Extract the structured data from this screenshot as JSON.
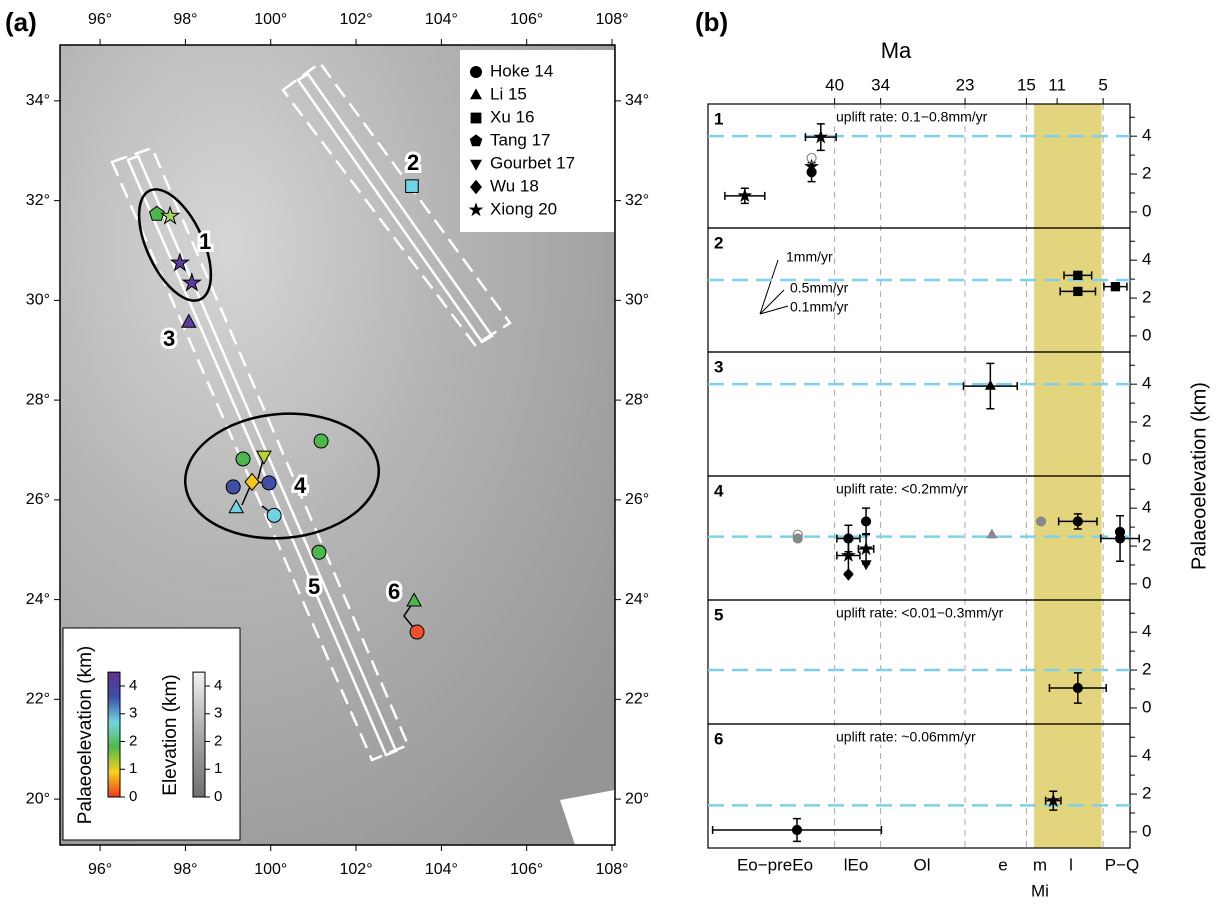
{
  "chart_data": [
    {
      "type": "map",
      "panel_label": "(a)",
      "xlim": [
        95.06,
        108.07
      ],
      "ylim": [
        19.08,
        35.12
      ],
      "xticks": [
        {
          "value": 96,
          "label": "96°"
        },
        {
          "value": 98,
          "label": "98°"
        },
        {
          "value": 100,
          "label": "100°"
        },
        {
          "value": 102,
          "label": "102°"
        },
        {
          "value": 104,
          "label": "104°"
        },
        {
          "value": 106,
          "label": "106°"
        },
        {
          "value": 108,
          "label": "108°"
        }
      ],
      "yticks": [
        {
          "value": 20,
          "label": "20°"
        },
        {
          "value": 22,
          "label": "22°"
        },
        {
          "value": 24,
          "label": "24°"
        },
        {
          "value": 26,
          "label": "26°"
        },
        {
          "value": 28,
          "label": "28°"
        },
        {
          "value": 30,
          "label": "30°"
        },
        {
          "value": 32,
          "label": "32°"
        },
        {
          "value": 34,
          "label": "34°"
        }
      ],
      "series": [
        {
          "name": "Hoke 14",
          "marker": "circle",
          "x": [
            99.35,
            99.12,
            99.96,
            100.08,
            101.18,
            101.13,
            103.43
          ],
          "y": [
            26.82,
            26.26,
            26.34,
            25.69,
            27.18,
            24.95,
            23.35
          ],
          "colors": [
            "#4cb84c",
            "#3f4fa8",
            "#3f4fa8",
            "#6fd3e3",
            "#4cb84c",
            "#4cb84c",
            "#f0502a"
          ]
        },
        {
          "name": "Li 15",
          "marker": "triangle",
          "x": [
            98.08,
            99.19,
            103.36
          ],
          "y": [
            29.56,
            25.84,
            23.97
          ],
          "colors": [
            "#5d3c9c",
            "#6fd3e3",
            "#4cb84c"
          ]
        },
        {
          "name": "Xu 16",
          "marker": "square",
          "x": [
            103.31
          ],
          "y": [
            32.29
          ],
          "colors": [
            "#6fd3e3"
          ]
        },
        {
          "name": "Tang 17",
          "marker": "pentagon",
          "x": [
            97.33
          ],
          "y": [
            31.73
          ],
          "colors": [
            "#4cb84c"
          ]
        },
        {
          "name": "Gourbet 17",
          "marker": "triangle-down",
          "x": [
            99.84
          ],
          "y": [
            26.88
          ],
          "colors": [
            "#b6d332"
          ]
        },
        {
          "name": "Wu 18",
          "marker": "diamond",
          "x": [
            99.56
          ],
          "y": [
            26.36
          ],
          "colors": [
            "#f5c518"
          ]
        },
        {
          "name": "Xiong 20",
          "marker": "star",
          "x": [
            97.64,
            97.87,
            98.15
          ],
          "y": [
            31.69,
            30.75,
            30.35
          ],
          "colors": [
            "#a3d462",
            "#5d3c9c",
            "#5d3c9c"
          ]
        }
      ],
      "annotations": [
        "1",
        "2",
        "3",
        "4",
        "5",
        "6"
      ],
      "colorbars": [
        {
          "label": "Palaeoelevation (km)",
          "lim": [
            0,
            4.5
          ],
          "ticks": [
            0,
            1,
            2,
            3,
            4
          ],
          "colors": [
            "#ee3a1f",
            "#f7d21c",
            "#52b84c",
            "#72d5e2",
            "#3d4fa8",
            "#62328f"
          ]
        },
        {
          "label": "Elevation (km)",
          "lim": [
            0,
            4.5
          ],
          "ticks": [
            0,
            1,
            2,
            3,
            4
          ],
          "colors": [
            "#707070",
            "#a8a8a8",
            "#f2f2f2"
          ]
        }
      ]
    },
    {
      "type": "timeline-panels",
      "panel_label": "(b)",
      "xlabel": "Ma",
      "ylabel": "Palaeoelevation (km)",
      "xlim": [
        56.5,
        1.5
      ],
      "xticks": [
        40,
        34,
        23,
        15,
        11,
        5
      ],
      "band": [
        14,
        5.2
      ],
      "band_color": "#e3d47e",
      "reference_color": "#7fd0ea",
      "ylim": [
        -0.85,
        5.7
      ],
      "yticks": [
        0,
        2,
        4
      ],
      "yminor": [
        1,
        3,
        5
      ],
      "epochs": [
        "Eo−preEo",
        "lEo",
        "Ol",
        "e",
        "m",
        "l",
        "P−Q"
      ],
      "epoch_group": "Mi",
      "rate_labels": [
        "1mm/yr",
        "0.5mm/yr",
        "0.1mm/yr"
      ],
      "panels": [
        {
          "label": "1",
          "note": "uplift rate: 0.1−0.8mm/yr",
          "reference": 4.0,
          "points": [
            {
              "marker": "star",
              "x": 51.7,
              "y": 0.85,
              "xerr": 2.6,
              "yerr": 0.4
            },
            {
              "marker": "circle",
              "x": 43,
              "y": 2.1,
              "yerr": 0.5
            },
            {
              "marker": "star",
              "x": 43,
              "y": 2.4
            },
            {
              "marker": "circle",
              "x": 43,
              "y": 2.85,
              "color": "#888888",
              "open": true
            },
            {
              "marker": "star",
              "x": 41.8,
              "y": 3.95,
              "xerr": 2,
              "yerr": 0.7
            }
          ]
        },
        {
          "label": "2",
          "reference": 2.95,
          "points": [
            {
              "marker": "square",
              "x": 8.3,
              "y": 3.2,
              "xerr": 1.8
            },
            {
              "marker": "square",
              "x": 8.3,
              "y": 2.35,
              "xerr": 2.3
            },
            {
              "marker": "square",
              "x": 3.4,
              "y": 2.6,
              "xerr": 1.5
            }
          ]
        },
        {
          "label": "3",
          "reference": 4.0,
          "points": [
            {
              "marker": "triangle",
              "x": 19.7,
              "y": 3.9,
              "xerr": 3.5,
              "yerr": 1.2
            }
          ]
        },
        {
          "label": "4",
          "note": "uplift rate: <0.2mm/yr",
          "reference": 2.5,
          "points": [
            {
              "marker": "circle",
              "x": 44.8,
              "y": 2.6,
              "color": "#888888",
              "open": true
            },
            {
              "marker": "circle",
              "x": 44.8,
              "y": 2.4,
              "color": "#888888"
            },
            {
              "marker": "circle",
              "x": 38.2,
              "y": 2.4,
              "xerr": 1.5,
              "yerr": 0.7
            },
            {
              "marker": "star",
              "x": 38.2,
              "y": 1.5,
              "xerr": 1.5,
              "yerr": 0.9
            },
            {
              "marker": "diamond",
              "x": 38.2,
              "y": 0.5
            },
            {
              "marker": "circle",
              "x": 35.9,
              "y": 3.3,
              "yerr": 0.7
            },
            {
              "marker": "star",
              "x": 35.9,
              "y": 1.85,
              "xerr": 1,
              "yerr": 0.8
            },
            {
              "marker": "triangle-down",
              "x": 35.9,
              "y": 1.05
            },
            {
              "marker": "triangle",
              "x": 19.5,
              "y": 2.6,
              "color": "#888888"
            },
            {
              "marker": "circle",
              "x": 13.1,
              "y": 3.3,
              "color": "#888888"
            },
            {
              "marker": "circle",
              "x": 8.3,
              "y": 3.3,
              "xerr": 2.5,
              "yerr": 0.4
            },
            {
              "marker": "circle",
              "x": 2.8,
              "y": 2.75
            },
            {
              "marker": "circle",
              "x": 2.8,
              "y": 2.4,
              "xerr": 2.5,
              "yerr": 1.2
            }
          ]
        },
        {
          "label": "5",
          "note": "uplift rate: <0.01−0.3mm/yr",
          "reference": 2.0,
          "points": [
            {
              "marker": "circle",
              "x": 8.3,
              "y": 1.05,
              "xerr": 3.7,
              "yerr": 0.8
            }
          ]
        },
        {
          "label": "6",
          "note": "uplift rate: ~0.06mm/yr",
          "reference": 1.4,
          "points": [
            {
              "marker": "star",
              "x": 11.5,
              "y": 1.65,
              "xerr": 1,
              "yerr": 0.5
            },
            {
              "marker": "circle",
              "x": 44.9,
              "y": 0.1,
              "xerr": 11,
              "yerr": 0.6
            }
          ]
        }
      ]
    }
  ]
}
